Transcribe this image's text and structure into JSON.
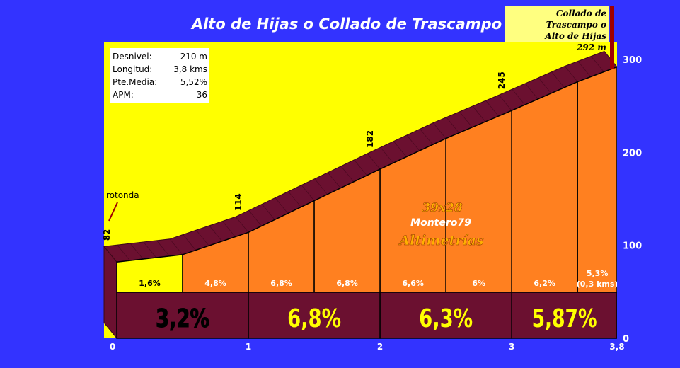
{
  "title": "Alto de Hijas o Collado de Trascampo",
  "summit_label": [
    "Collado de Trascampo o",
    "Alto de Hijas",
    "292 m"
  ],
  "info": [
    {
      "label": "Desnivel:",
      "value": "210 m"
    },
    {
      "label": "Longitud:",
      "value": "3,8 kms"
    },
    {
      "label": "Pte.Media:",
      "value": "5,52%"
    },
    {
      "label": "APM:",
      "value": "36"
    }
  ],
  "watermark": {
    "line1": "39x28",
    "line2": "Montero79",
    "line3": "Altimetrías"
  },
  "colors": {
    "background": "#3333ff",
    "sky": "#ffff00",
    "slab": "#6b1030",
    "segment_fill": "#ff8020",
    "first_segment_fill": "#ffff00",
    "km_text": "#ffff00"
  },
  "chart_data": {
    "type": "area",
    "title": "Alto de Hijas o Collado de Trascampo",
    "xlim": [
      0,
      3.8
    ],
    "ylim": [
      0,
      320
    ],
    "x_ticks": [
      {
        "value": 0,
        "label": "0"
      },
      {
        "value": 1,
        "label": "1"
      },
      {
        "value": 2,
        "label": "2"
      },
      {
        "value": 3,
        "label": "3"
      },
      {
        "value": 3.8,
        "label": "3,8"
      }
    ],
    "y_ticks": [
      {
        "value": 0,
        "label": "0"
      },
      {
        "value": 100,
        "label": "100"
      },
      {
        "value": 200,
        "label": "200"
      },
      {
        "value": 300,
        "label": "300"
      }
    ],
    "profile": {
      "x": [
        0,
        0.5,
        1,
        1.5,
        2,
        2.5,
        3,
        3.5,
        3.8
      ],
      "elevation": [
        82,
        90,
        114,
        148,
        182,
        215,
        245,
        276,
        292
      ]
    },
    "elevation_labels": [
      {
        "x": 0,
        "label": "82"
      },
      {
        "x": 1,
        "label": "114"
      },
      {
        "x": 2,
        "label": "182"
      },
      {
        "x": 3,
        "label": "245"
      }
    ],
    "segment_grades": [
      "1,6%",
      "4,8%",
      "6,8%",
      "6,8%",
      "6,6%",
      "6%",
      "6,2%",
      "5,3%"
    ],
    "last_segment_note": "(0,3 kms)",
    "km_averages": [
      {
        "from": 0,
        "to": 1,
        "label": "3,2%"
      },
      {
        "from": 1,
        "to": 2,
        "label": "6,8%"
      },
      {
        "from": 2,
        "to": 3,
        "label": "6,3%"
      },
      {
        "from": 3,
        "to": 3.8,
        "label": "5,87%"
      }
    ],
    "annotations": [
      {
        "x": 0,
        "label": "rotonda"
      }
    ]
  }
}
